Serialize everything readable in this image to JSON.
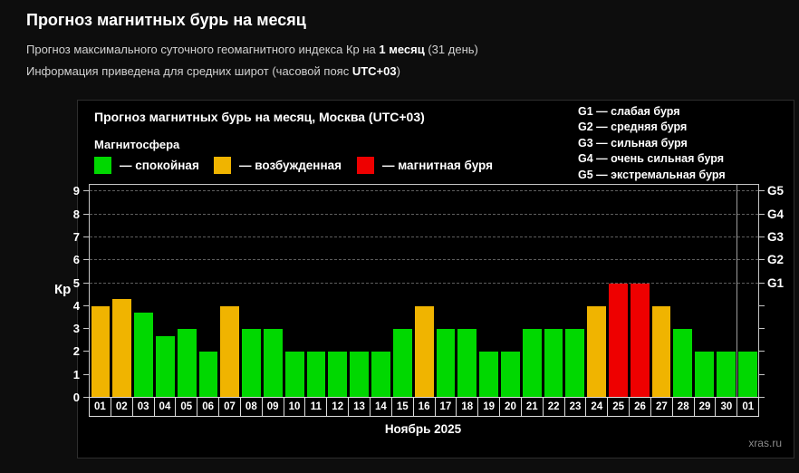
{
  "page": {
    "title": "Прогноз магнитных бурь на месяц",
    "subtitle1_prefix": "Прогноз максимального суточного геомагнитного индекса Кр на ",
    "subtitle1_bold": "1 месяц",
    "subtitle1_suffix": " (31 день)",
    "subtitle2_prefix": "Информация приведена для средних широт (часовой пояс ",
    "subtitle2_bold": "UTC+03",
    "subtitle2_suffix": ")"
  },
  "chart": {
    "title": "Прогноз магнитных бурь на месяц, Москва (UTC+03)",
    "legend_title": "Магнитосфера",
    "legend": [
      {
        "key": "calm",
        "label": "— спокойная",
        "color": "#00d800"
      },
      {
        "key": "excited",
        "label": "— возбужденная",
        "color": "#f0b400"
      },
      {
        "key": "storm",
        "label": "— магнитная буря",
        "color": "#ee0000"
      }
    ],
    "g_legend": [
      "G1 — слабая буря",
      "G2 — средняя буря",
      "G3 — сильная буря",
      "G4 — очень сильная буря",
      "G5 — экстремальная буря"
    ],
    "y_label": "Кр",
    "x_label": "Ноябрь 2025",
    "watermark": "xras.ru"
  },
  "chart_data": {
    "type": "bar",
    "title": "Прогноз магнитных бурь на месяц, Москва (UTC+03)",
    "xlabel": "Ноябрь 2025",
    "ylabel": "Кр",
    "ylim": [
      0,
      9.3
    ],
    "yticks": [
      0,
      1,
      2,
      3,
      4,
      5,
      6,
      7,
      8,
      9
    ],
    "gridlines_at": [
      5,
      6,
      7,
      8,
      9
    ],
    "grid": "dashed-horizontal-on-storm-levels-only",
    "legend_position": "top",
    "right_axis_labels": [
      {
        "value": 5,
        "label": "G1"
      },
      {
        "value": 6,
        "label": "G2"
      },
      {
        "value": 7,
        "label": "G3"
      },
      {
        "value": 8,
        "label": "G4"
      },
      {
        "value": 9,
        "label": "G5"
      }
    ],
    "month_separator_after_index": 29,
    "categories": [
      "01",
      "02",
      "03",
      "04",
      "05",
      "06",
      "07",
      "08",
      "09",
      "10",
      "11",
      "12",
      "13",
      "14",
      "15",
      "16",
      "17",
      "18",
      "19",
      "20",
      "21",
      "22",
      "23",
      "24",
      "25",
      "26",
      "27",
      "28",
      "29",
      "30",
      "01"
    ],
    "values": [
      4,
      4.3,
      3.7,
      2.7,
      3,
      2,
      4,
      3,
      3,
      2,
      2,
      2,
      2,
      2,
      3,
      4,
      3,
      3,
      2,
      2,
      3,
      3,
      3,
      4,
      5,
      5,
      4,
      3,
      2,
      2,
      2
    ],
    "statuses": [
      "excited",
      "excited",
      "calm",
      "calm",
      "calm",
      "calm",
      "excited",
      "calm",
      "calm",
      "calm",
      "calm",
      "calm",
      "calm",
      "calm",
      "calm",
      "excited",
      "calm",
      "calm",
      "calm",
      "calm",
      "calm",
      "calm",
      "calm",
      "excited",
      "storm",
      "storm",
      "excited",
      "calm",
      "calm",
      "calm",
      "calm"
    ]
  }
}
